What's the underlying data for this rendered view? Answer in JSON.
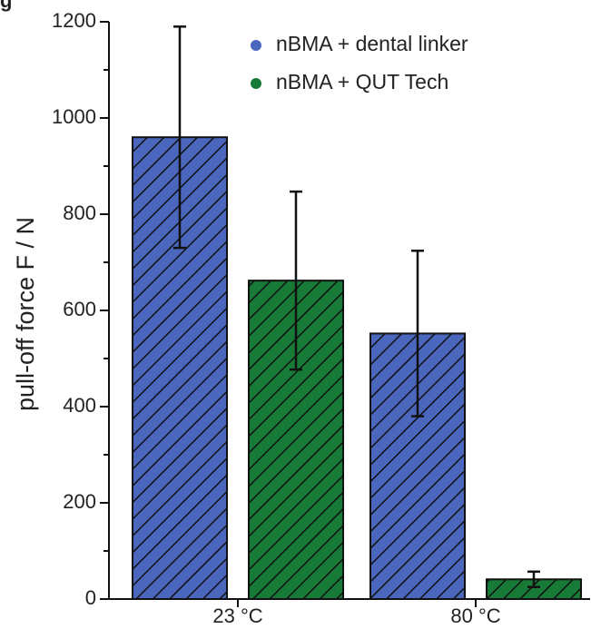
{
  "panel_label": "g",
  "chart_data": {
    "type": "bar",
    "title": "",
    "xlabel": "",
    "ylabel": "pull-off force F / N",
    "ylim": [
      0,
      1200
    ],
    "yticks": [
      0,
      200,
      400,
      600,
      800,
      1000,
      1200
    ],
    "categories": [
      "23 °C",
      "80 °C"
    ],
    "series": [
      {
        "name": "nBMA + dental linker",
        "color": "#4a66bd",
        "values": [
          960,
          552
        ],
        "error": [
          230,
          172
        ]
      },
      {
        "name": "nBMA + QUT Tech",
        "color": "#177a37",
        "values": [
          662,
          41
        ],
        "error": [
          185,
          16
        ]
      }
    ],
    "bar_pattern": "diagonal-hatch",
    "legend_position": "top-right",
    "grid": false
  }
}
